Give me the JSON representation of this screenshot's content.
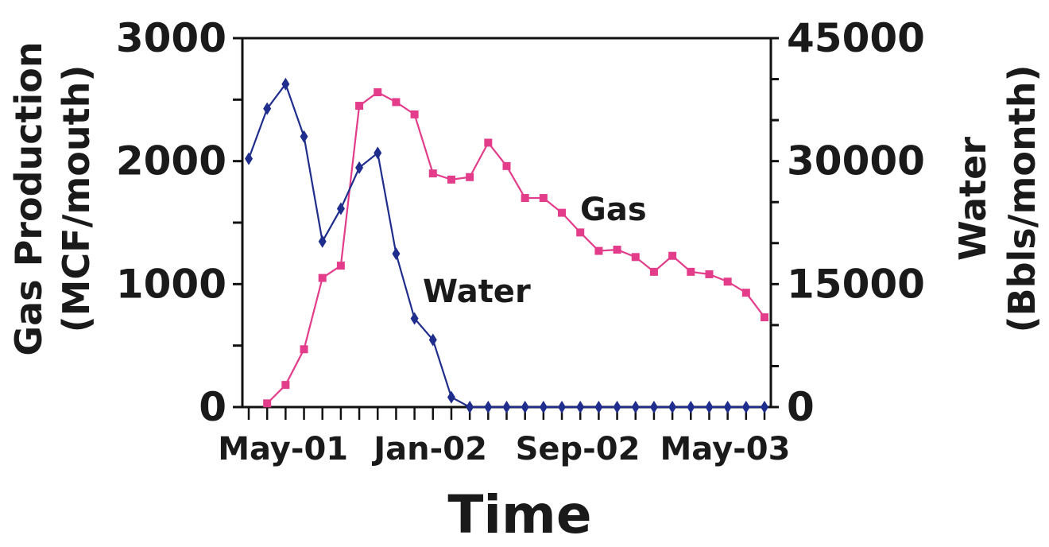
{
  "chart_data": {
    "type": "line",
    "xlabel": "Time",
    "ylabel_left": [
      "Gas Production",
      "(MCF/mouth)"
    ],
    "ylabel_right": [
      "Water",
      "(Bbls/month)"
    ],
    "x_ticks": [
      "May-01",
      "Jan-02",
      "Sep-02",
      "May-03"
    ],
    "ylim_left": [
      0,
      3000
    ],
    "ylim_right": [
      0,
      45000
    ],
    "yticks_left": [
      "0",
      "1000",
      "2000",
      "3000"
    ],
    "yticks_right": [
      "0",
      "15000",
      "30000",
      "45000"
    ],
    "grid": false,
    "series": [
      {
        "name": "Gas",
        "axis": "left",
        "color": "#e23c8a",
        "marker": "square",
        "x": [
          "May-01",
          "Jun-01",
          "Jul-01",
          "Aug-01",
          "Sep-01",
          "Oct-01",
          "Nov-01",
          "Dec-01",
          "Jan-02",
          "Feb-02",
          "Mar-02",
          "Apr-02",
          "May-02",
          "Jun-02",
          "Jul-02",
          "Aug-02",
          "Sep-02",
          "Oct-02",
          "Nov-02",
          "Dec-02",
          "Jan-03",
          "Feb-03",
          "Mar-03",
          "Apr-03",
          "May-03",
          "Jun-03",
          "Jul-03",
          "Aug-03"
        ],
        "values": [
          30,
          180,
          470,
          1050,
          1150,
          2450,
          2560,
          2480,
          2380,
          1900,
          1850,
          1870,
          2150,
          1960,
          1700,
          1700,
          1580,
          1420,
          1270,
          1280,
          1220,
          1100,
          1230,
          1100,
          1080,
          1020,
          930,
          730
        ]
      },
      {
        "name": "Water",
        "axis": "right",
        "color": "#1f2d8c",
        "marker": "diamond",
        "x": [
          "Apr-01",
          "May-01",
          "Jun-01",
          "Jul-01",
          "Aug-01",
          "Sep-01",
          "Oct-01",
          "Nov-01",
          "Dec-01",
          "Jan-02",
          "Feb-02",
          "Mar-02",
          "Apr-02",
          "May-02",
          "Jun-02",
          "Jul-02",
          "Aug-02",
          "Sep-02",
          "Oct-02",
          "Nov-02",
          "Dec-02",
          "Jan-03",
          "Feb-03",
          "Mar-03",
          "Apr-03",
          "May-03",
          "Jun-03",
          "Jul-03",
          "Aug-03"
        ],
        "values": [
          30300,
          36400,
          39400,
          33000,
          20200,
          24200,
          29200,
          31000,
          18700,
          10800,
          8200,
          1200,
          0,
          0,
          0,
          0,
          0,
          0,
          0,
          0,
          0,
          0,
          0,
          0,
          0,
          0,
          0,
          0,
          0
        ]
      }
    ]
  }
}
